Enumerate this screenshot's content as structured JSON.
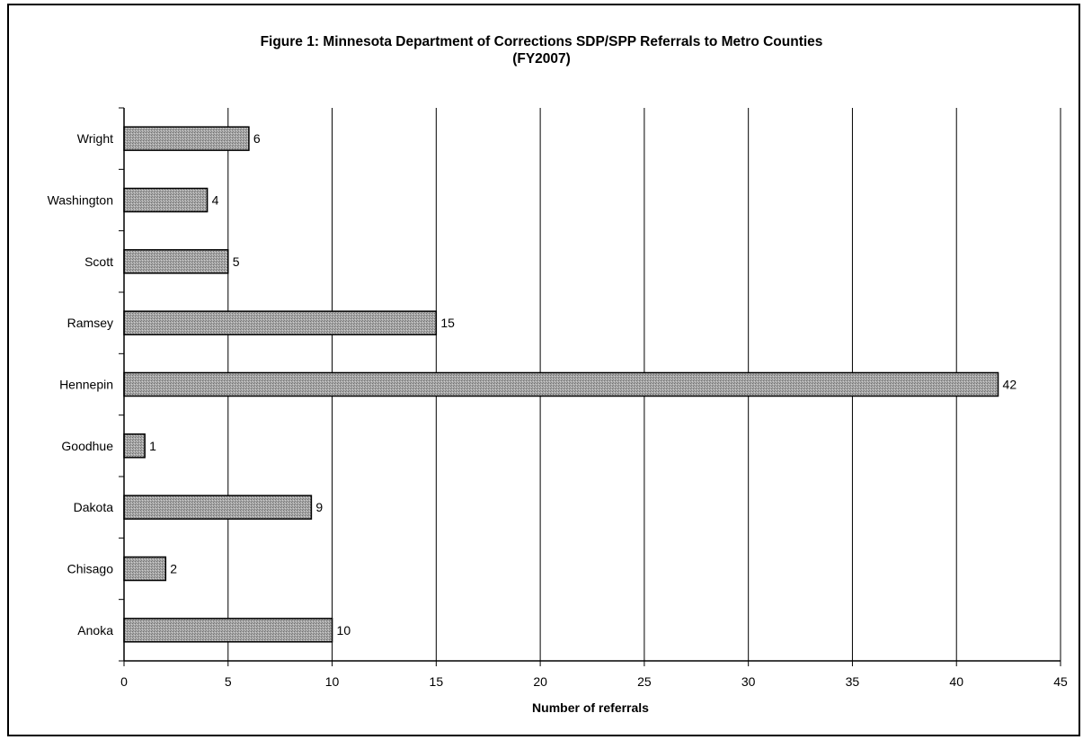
{
  "chart_data": {
    "type": "bar",
    "orientation": "horizontal",
    "title": "Figure 1:  Minnesota Department of Corrections SDP/SPP Referrals to Metro Counties",
    "subtitle": "(FY2007)",
    "xlabel": "Number of referrals",
    "ylabel": "",
    "xlim": [
      0,
      45
    ],
    "x_ticks": [
      0,
      5,
      10,
      15,
      20,
      25,
      30,
      35,
      40,
      45
    ],
    "grid": "vertical",
    "legend": "none",
    "categories": [
      "Wright",
      "Washington",
      "Scott",
      "Ramsey",
      "Hennepin",
      "Goodhue",
      "Dakota",
      "Chisago",
      "Anoka"
    ],
    "values": [
      6,
      4,
      5,
      15,
      42,
      1,
      9,
      2,
      10
    ],
    "data_labels": [
      "6",
      "4",
      "5",
      "15",
      "42",
      "1",
      "9",
      "2",
      "10"
    ],
    "bar_color": "#9a9a9a",
    "grid_color": "#000000"
  }
}
